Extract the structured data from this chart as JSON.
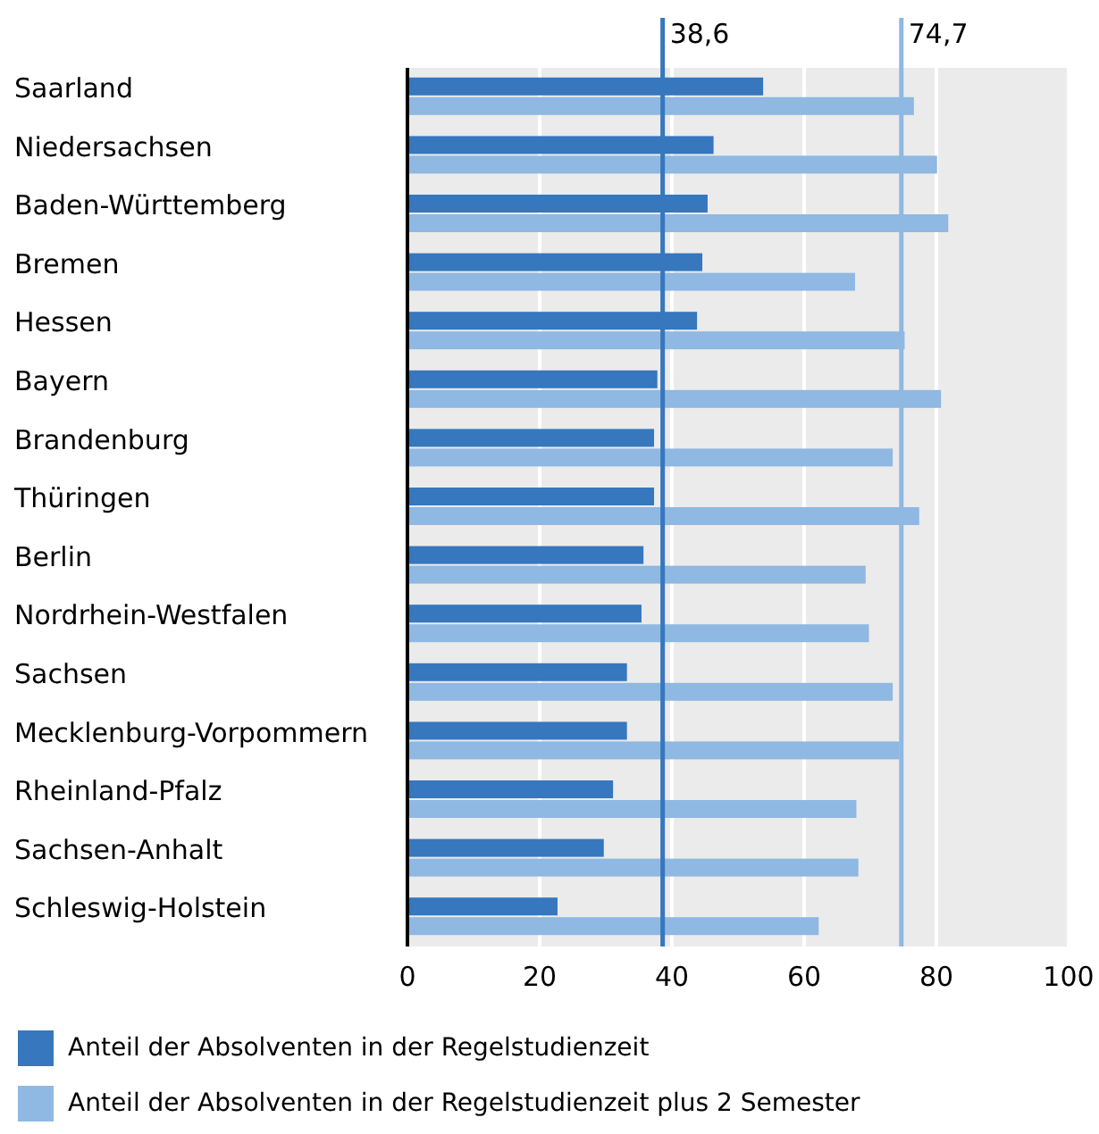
{
  "chart_data": {
    "type": "bar",
    "orientation": "horizontal",
    "categories": [
      "Saarland",
      "Niedersachsen",
      "Baden-Württemberg",
      "Bremen",
      "Hessen",
      "Bayern",
      "Brandenburg",
      "Thüringen",
      "Berlin",
      "Nordrhein-Westfalen",
      "Sachsen",
      "Mecklenburg-Vorpommern",
      "Rheinland-Pfalz",
      "Sachsen-Anhalt",
      "Schleswig-Holstein"
    ],
    "series": [
      {
        "name": "Anteil der Absolventen in der Regelstudienzeit",
        "color": "#3677be",
        "values": [
          53.8,
          46.3,
          45.4,
          44.6,
          43.8,
          37.8,
          37.3,
          37.3,
          35.7,
          35.4,
          33.2,
          33.2,
          31.1,
          29.7,
          22.7
        ]
      },
      {
        "name": "Anteil der Absolventen in der Regelstudienzeit plus 2 Semester",
        "color": "#8fb8e2",
        "values": [
          76.6,
          80.1,
          81.8,
          67.7,
          75.2,
          80.7,
          73.4,
          77.4,
          69.3,
          69.8,
          73.4,
          74.4,
          67.9,
          68.2,
          62.2
        ]
      }
    ],
    "xlim": [
      0,
      100
    ],
    "xticks": [
      0,
      20,
      40,
      60,
      80,
      100
    ],
    "grid": "x",
    "legend": "bottom",
    "ref_lines": [
      {
        "axis": "x",
        "value": 38.6,
        "label": "38,6",
        "color": "#3677be"
      },
      {
        "axis": "x",
        "value": 74.7,
        "label": "74,7",
        "color": "#8fb8e2"
      }
    ]
  }
}
